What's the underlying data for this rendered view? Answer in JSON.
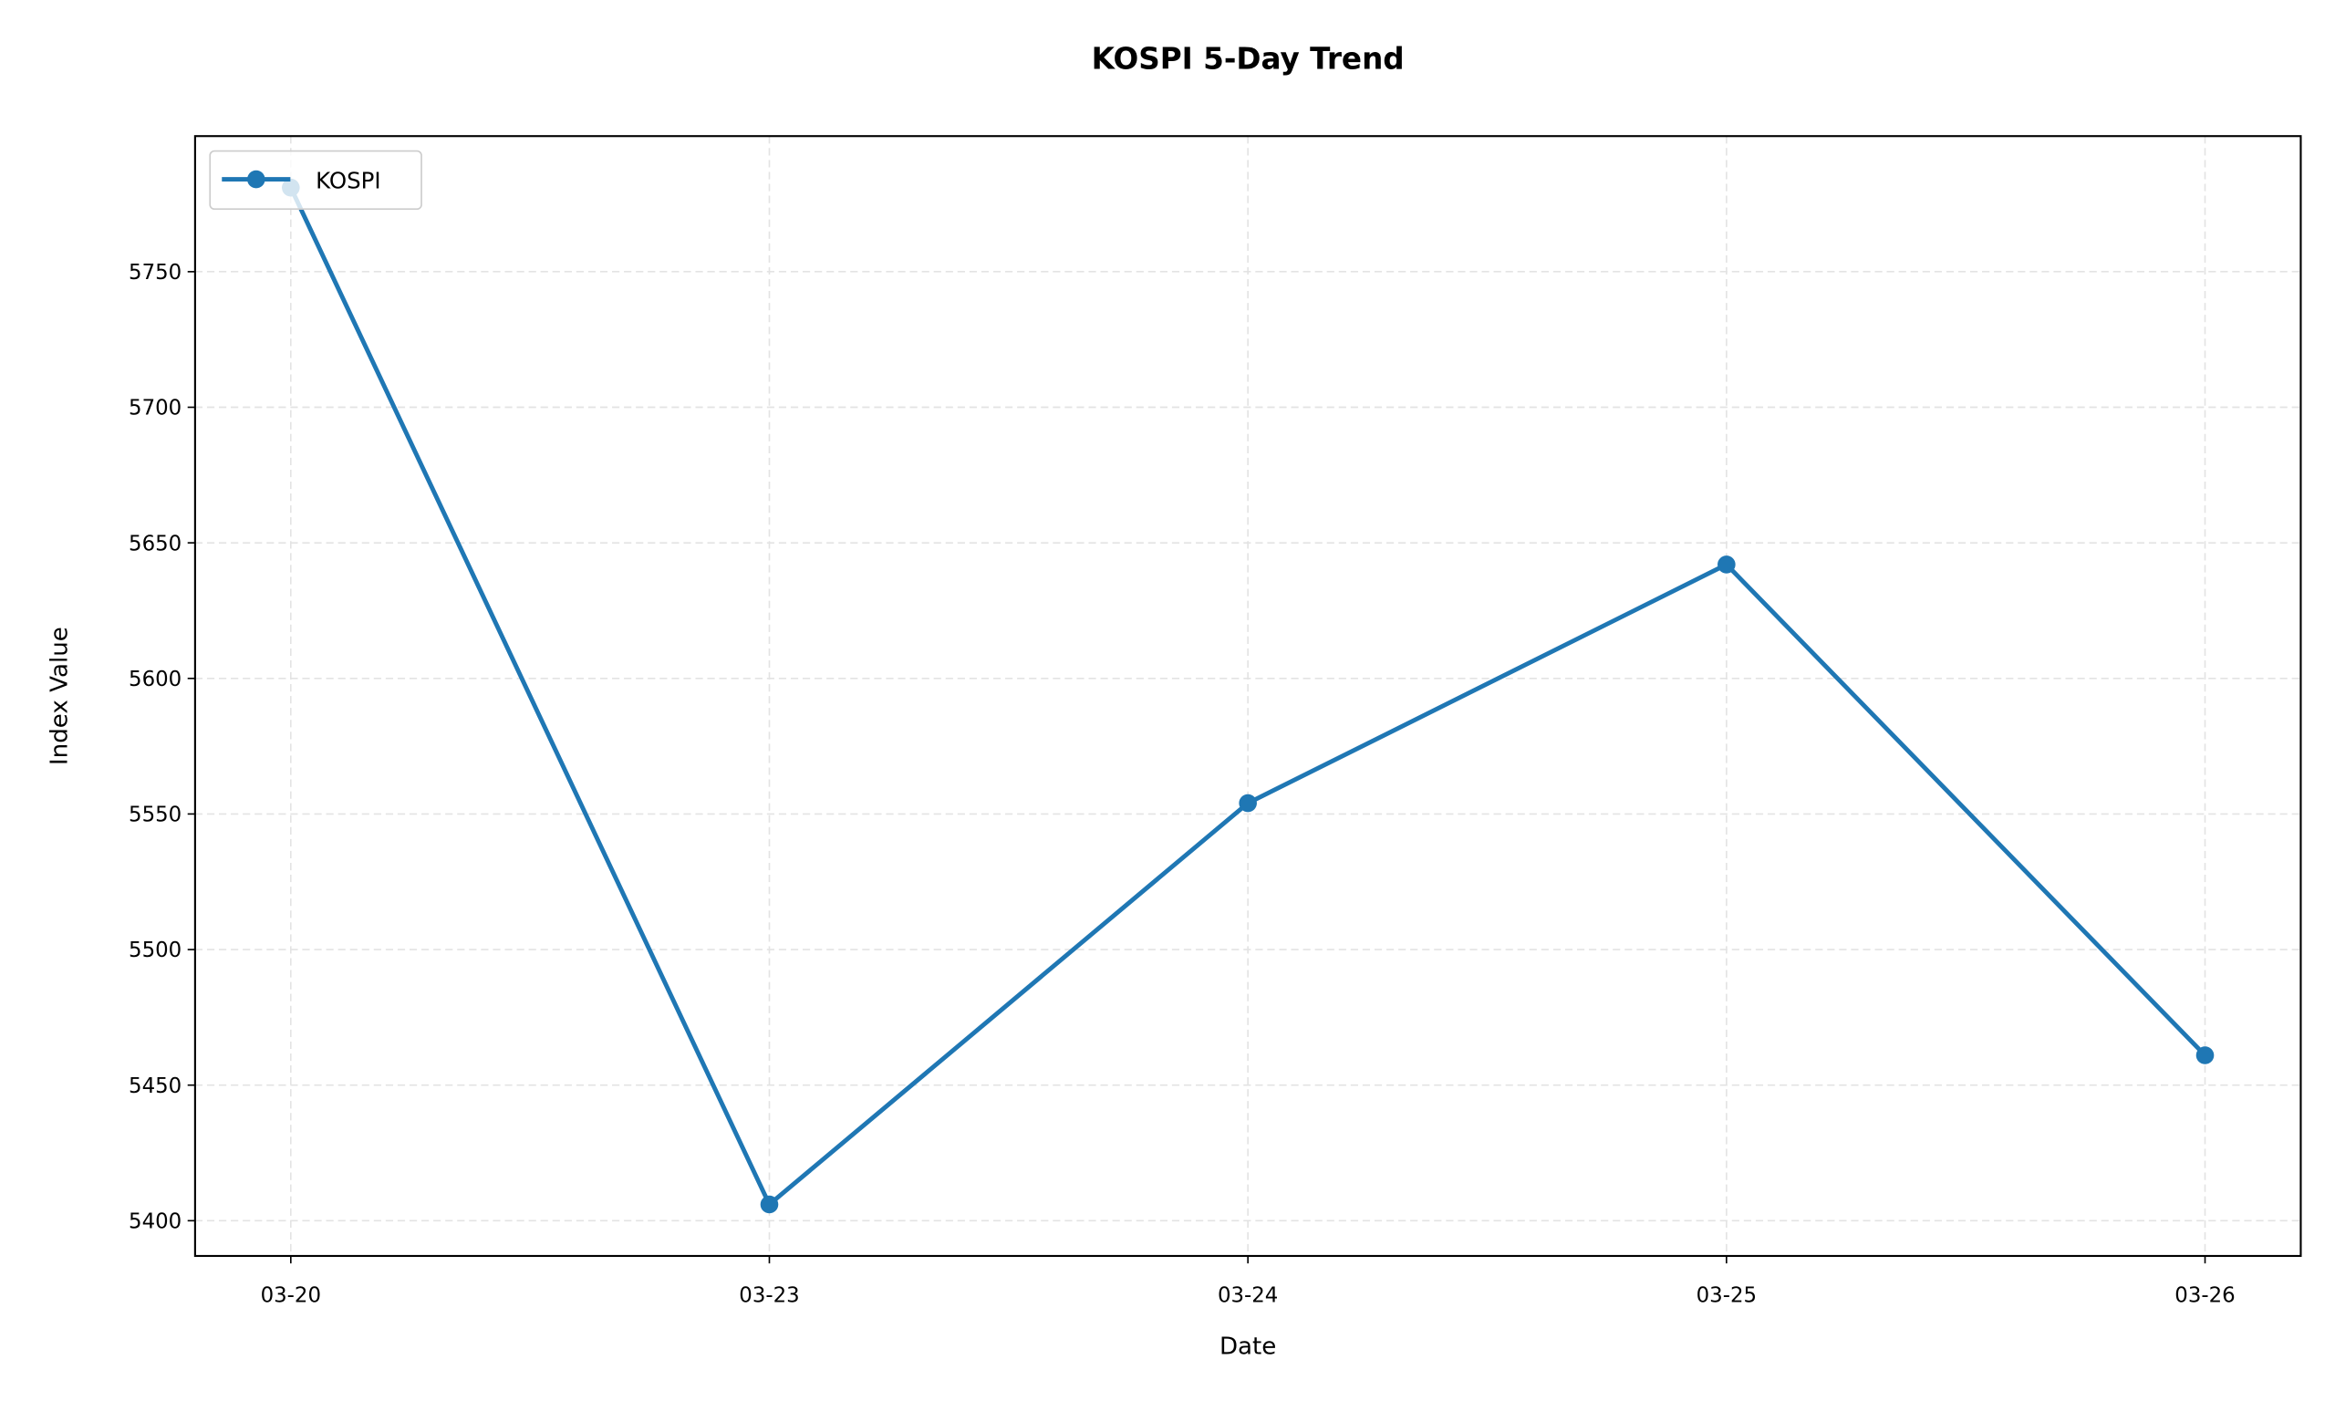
{
  "chart_data": {
    "type": "line",
    "title": "KOSPI 5-Day Trend",
    "xlabel": "Date",
    "ylabel": "Index Value",
    "categories": [
      "03-20",
      "03-23",
      "03-24",
      "03-25",
      "03-26"
    ],
    "series": [
      {
        "name": "KOSPI",
        "values": [
          5781,
          5406,
          5554,
          5642,
          5461
        ],
        "color": "#1f77b4"
      }
    ],
    "yticks": [
      5400,
      5450,
      5500,
      5550,
      5600,
      5650,
      5700,
      5750
    ],
    "ylim": [
      5387,
      5800
    ],
    "grid": true,
    "legend": "top-left"
  }
}
